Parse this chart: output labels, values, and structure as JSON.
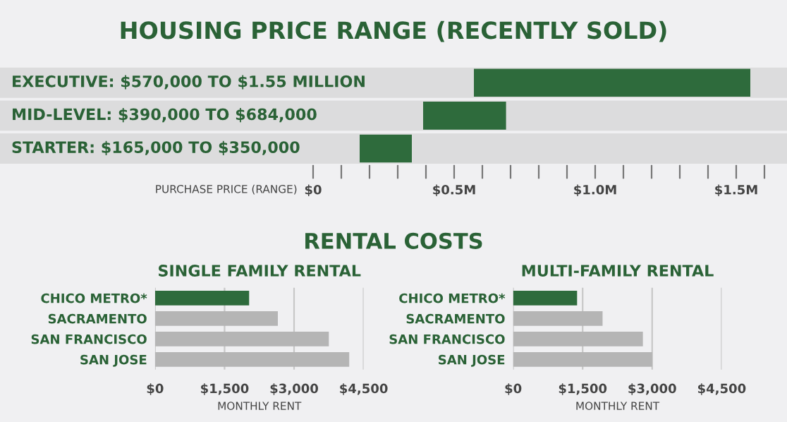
{
  "chart_data": [
    {
      "type": "bar",
      "title": "HOUSING PRICE RANGE (RECENTLY SOLD)",
      "orientation": "horizontal",
      "categories": [
        "EXECUTIVE: $570,000 TO $1.55 MILLION",
        "MID-LEVEL: $390,000 TO $684,000",
        "STARTER: $165,000 TO $350,000"
      ],
      "base": [
        0.57,
        0.39,
        0.165
      ],
      "values": [
        0.98,
        0.294,
        0.185
      ],
      "color": "#2e6b3c",
      "xlabel": "PURCHASE PRICE (RANGE)",
      "xlim": [
        -1.11,
        1.68
      ],
      "xticks": [
        {
          "value": 0,
          "label": "$0"
        },
        {
          "value": 0.1,
          "label": null
        },
        {
          "value": 0.2,
          "label": null
        },
        {
          "value": 0.3,
          "label": null
        },
        {
          "value": 0.4,
          "label": null
        },
        {
          "value": 0.5,
          "label": "$0.5M"
        },
        {
          "value": 0.6,
          "label": null
        },
        {
          "value": 0.7,
          "label": null
        },
        {
          "value": 0.8,
          "label": null
        },
        {
          "value": 0.9,
          "label": null
        },
        {
          "value": 1.0,
          "label": "$1.0M"
        },
        {
          "value": 1.1,
          "label": null
        },
        {
          "value": 1.2,
          "label": null
        },
        {
          "value": 1.3,
          "label": null
        },
        {
          "value": 1.4,
          "label": null
        },
        {
          "value": 1.5,
          "label": "$1.5M"
        },
        {
          "value": 1.6,
          "label": null
        }
      ],
      "grid": false
    },
    {
      "type": "bar",
      "title": "RENTAL COSTS",
      "subtitle": "SINGLE FAMILY RENTAL",
      "orientation": "horizontal",
      "categories": [
        "CHICO METRO*",
        "SACRAMENTO",
        "SAN FRANCISCO",
        "SAN JOSE"
      ],
      "values": [
        2030,
        2650,
        3750,
        4190
      ],
      "colors": [
        "#2e6b3c",
        "#b5b5b5",
        "#b5b5b5",
        "#b5b5b5"
      ],
      "xlabel": "MONTHLY RENT",
      "xlim": [
        0,
        4500
      ],
      "xticks": [
        {
          "value": 0,
          "label": "$0"
        },
        {
          "value": 1500,
          "label": "$1,500"
        },
        {
          "value": 3000,
          "label": "$3,000"
        },
        {
          "value": 4500,
          "label": "$4,500"
        }
      ],
      "grid": "x"
    },
    {
      "type": "bar",
      "subtitle": "MULTI-FAMILY RENTAL",
      "orientation": "horizontal",
      "categories": [
        "CHICO METRO*",
        "SACRAMENTO",
        "SAN FRANCISCO",
        "SAN JOSE"
      ],
      "values": [
        1380,
        1930,
        2800,
        3000
      ],
      "colors": [
        "#2e6b3c",
        "#b5b5b5",
        "#b5b5b5",
        "#b5b5b5"
      ],
      "xlabel": "MONTHLY RENT",
      "xlim": [
        0,
        4500
      ],
      "xticks": [
        {
          "value": 0,
          "label": "$0"
        },
        {
          "value": 1500,
          "label": "$1,500"
        },
        {
          "value": 3000,
          "label": "$3,000"
        },
        {
          "value": 4500,
          "label": "$4,500"
        }
      ],
      "grid": "x"
    }
  ]
}
